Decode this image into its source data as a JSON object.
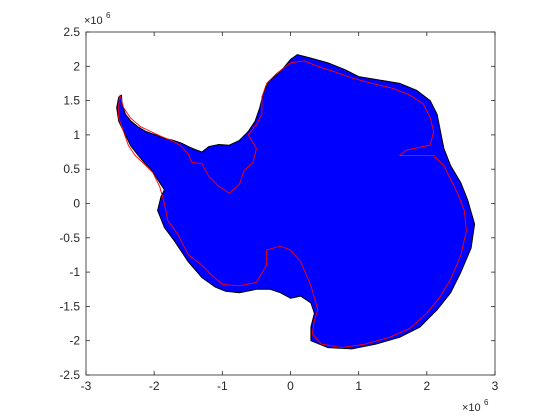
{
  "chart_data": {
    "type": "map",
    "xlim": [
      -3,
      3
    ],
    "ylim": [
      -2.5,
      2.5
    ],
    "x_ticks": [
      "-3",
      "-2",
      "-1",
      "0",
      "1",
      "2",
      "3"
    ],
    "y_ticks": [
      "-2.5",
      "-2",
      "-1.5",
      "-1",
      "-0.5",
      "0",
      "0.5",
      "1",
      "1.5",
      "2",
      "2.5"
    ],
    "x_multiplier": {
      "base": "×10",
      "exp": "6"
    },
    "y_multiplier": {
      "base": "×10",
      "exp": "6"
    },
    "grid": false,
    "colors": {
      "grounded_ice_fill": "#0000ff",
      "grounding_line": "#ff0000",
      "coastline_edge": "#000000",
      "axes": "#262626"
    },
    "outer_outline": [
      [
        -2.48,
        1.58
      ],
      [
        -2.47,
        1.45
      ],
      [
        -2.42,
        1.3
      ],
      [
        -2.34,
        1.2
      ],
      [
        -2.24,
        1.12
      ],
      [
        -2.12,
        1.05
      ],
      [
        -1.98,
        1.0
      ],
      [
        -1.85,
        0.95
      ],
      [
        -1.72,
        0.92
      ],
      [
        -1.6,
        0.88
      ],
      [
        -1.48,
        0.82
      ],
      [
        -1.38,
        0.78
      ],
      [
        -1.3,
        0.75
      ],
      [
        -1.2,
        0.83
      ],
      [
        -1.05,
        0.86
      ],
      [
        -0.9,
        0.85
      ],
      [
        -0.75,
        0.92
      ],
      [
        -0.62,
        1.05
      ],
      [
        -0.52,
        1.2
      ],
      [
        -0.45,
        1.4
      ],
      [
        -0.4,
        1.6
      ],
      [
        -0.32,
        1.78
      ],
      [
        -0.15,
        1.92
      ],
      [
        0.0,
        2.1
      ],
      [
        0.1,
        2.17
      ],
      [
        0.3,
        2.12
      ],
      [
        0.55,
        2.05
      ],
      [
        0.8,
        1.95
      ],
      [
        1.0,
        1.85
      ],
      [
        1.3,
        1.8
      ],
      [
        1.6,
        1.75
      ],
      [
        1.85,
        1.65
      ],
      [
        2.05,
        1.5
      ],
      [
        2.15,
        1.3
      ],
      [
        2.2,
        1.05
      ],
      [
        2.25,
        0.8
      ],
      [
        2.35,
        0.55
      ],
      [
        2.5,
        0.3
      ],
      [
        2.6,
        0.05
      ],
      [
        2.7,
        -0.3
      ],
      [
        2.65,
        -0.65
      ],
      [
        2.5,
        -1.0
      ],
      [
        2.35,
        -1.3
      ],
      [
        2.15,
        -1.55
      ],
      [
        1.9,
        -1.8
      ],
      [
        1.6,
        -1.95
      ],
      [
        1.25,
        -2.05
      ],
      [
        0.9,
        -2.12
      ],
      [
        0.55,
        -2.1
      ],
      [
        0.3,
        -2.0
      ],
      [
        0.3,
        -1.8
      ],
      [
        0.35,
        -1.6
      ],
      [
        0.3,
        -1.45
      ],
      [
        0.15,
        -1.35
      ],
      [
        0.0,
        -1.38
      ],
      [
        -0.15,
        -1.3
      ],
      [
        -0.3,
        -1.25
      ],
      [
        -0.5,
        -1.25
      ],
      [
        -0.75,
        -1.3
      ],
      [
        -0.95,
        -1.28
      ],
      [
        -1.1,
        -1.22
      ],
      [
        -1.3,
        -1.08
      ],
      [
        -1.5,
        -0.85
      ],
      [
        -1.7,
        -0.55
      ],
      [
        -1.85,
        -0.35
      ],
      [
        -1.95,
        -0.1
      ],
      [
        -1.9,
        0.1
      ],
      [
        -1.85,
        0.2
      ],
      [
        -1.95,
        0.35
      ],
      [
        -2.05,
        0.5
      ],
      [
        -2.15,
        0.6
      ],
      [
        -2.25,
        0.72
      ],
      [
        -2.35,
        0.85
      ],
      [
        -2.42,
        1.0
      ],
      [
        -2.52,
        1.2
      ],
      [
        -2.55,
        1.4
      ],
      [
        -2.52,
        1.55
      ]
    ],
    "grounding_line": [
      [
        -2.5,
        1.58
      ],
      [
        -2.45,
        1.4
      ],
      [
        -2.35,
        1.25
      ],
      [
        -2.2,
        1.12
      ],
      [
        -2.05,
        1.05
      ],
      [
        -1.9,
        0.98
      ],
      [
        -1.75,
        0.92
      ],
      [
        -1.62,
        0.85
      ],
      [
        -1.5,
        0.72
      ],
      [
        -1.45,
        0.6
      ],
      [
        -1.3,
        0.58
      ],
      [
        -1.2,
        0.4
      ],
      [
        -1.05,
        0.25
      ],
      [
        -0.9,
        0.15
      ],
      [
        -0.75,
        0.28
      ],
      [
        -0.68,
        0.48
      ],
      [
        -0.55,
        0.6
      ],
      [
        -0.5,
        0.8
      ],
      [
        -0.62,
        1.0
      ],
      [
        -0.5,
        1.15
      ],
      [
        -0.42,
        1.3
      ],
      [
        -0.42,
        1.55
      ],
      [
        -0.35,
        1.75
      ],
      [
        -0.2,
        1.9
      ],
      [
        0.0,
        2.05
      ],
      [
        0.2,
        2.08
      ],
      [
        0.4,
        2.0
      ],
      [
        0.65,
        1.92
      ],
      [
        0.9,
        1.83
      ],
      [
        1.2,
        1.75
      ],
      [
        1.5,
        1.68
      ],
      [
        1.75,
        1.58
      ],
      [
        1.95,
        1.45
      ],
      [
        2.05,
        1.25
      ],
      [
        2.1,
        1.05
      ],
      [
        2.05,
        0.85
      ],
      [
        1.7,
        0.78
      ],
      [
        1.6,
        0.7
      ],
      [
        2.1,
        0.7
      ],
      [
        2.25,
        0.55
      ],
      [
        2.35,
        0.35
      ],
      [
        2.45,
        0.15
      ],
      [
        2.55,
        -0.1
      ],
      [
        2.58,
        -0.4
      ],
      [
        2.5,
        -0.75
      ],
      [
        2.35,
        -1.1
      ],
      [
        2.2,
        -1.35
      ],
      [
        2.0,
        -1.6
      ],
      [
        1.75,
        -1.82
      ],
      [
        1.45,
        -1.95
      ],
      [
        1.1,
        -2.05
      ],
      [
        0.75,
        -2.1
      ],
      [
        0.45,
        -2.05
      ],
      [
        0.32,
        -1.9
      ],
      [
        0.35,
        -1.7
      ],
      [
        0.4,
        -1.55
      ],
      [
        0.3,
        -1.2
      ],
      [
        0.15,
        -0.85
      ],
      [
        0.0,
        -0.68
      ],
      [
        -0.15,
        -0.62
      ],
      [
        -0.35,
        -0.68
      ],
      [
        -0.35,
        -0.9
      ],
      [
        -0.5,
        -1.15
      ],
      [
        -0.75,
        -1.2
      ],
      [
        -1.0,
        -1.18
      ],
      [
        -1.15,
        -1.05
      ],
      [
        -1.3,
        -0.9
      ],
      [
        -1.5,
        -0.75
      ],
      [
        -1.65,
        -0.45
      ],
      [
        -1.8,
        -0.25
      ],
      [
        -1.85,
        0.0
      ],
      [
        -1.92,
        0.25
      ],
      [
        -2.02,
        0.45
      ],
      [
        -2.15,
        0.58
      ],
      [
        -2.28,
        0.7
      ],
      [
        -2.38,
        0.85
      ],
      [
        -2.45,
        1.05
      ],
      [
        -2.52,
        1.25
      ],
      [
        -2.52,
        1.45
      ]
    ]
  }
}
